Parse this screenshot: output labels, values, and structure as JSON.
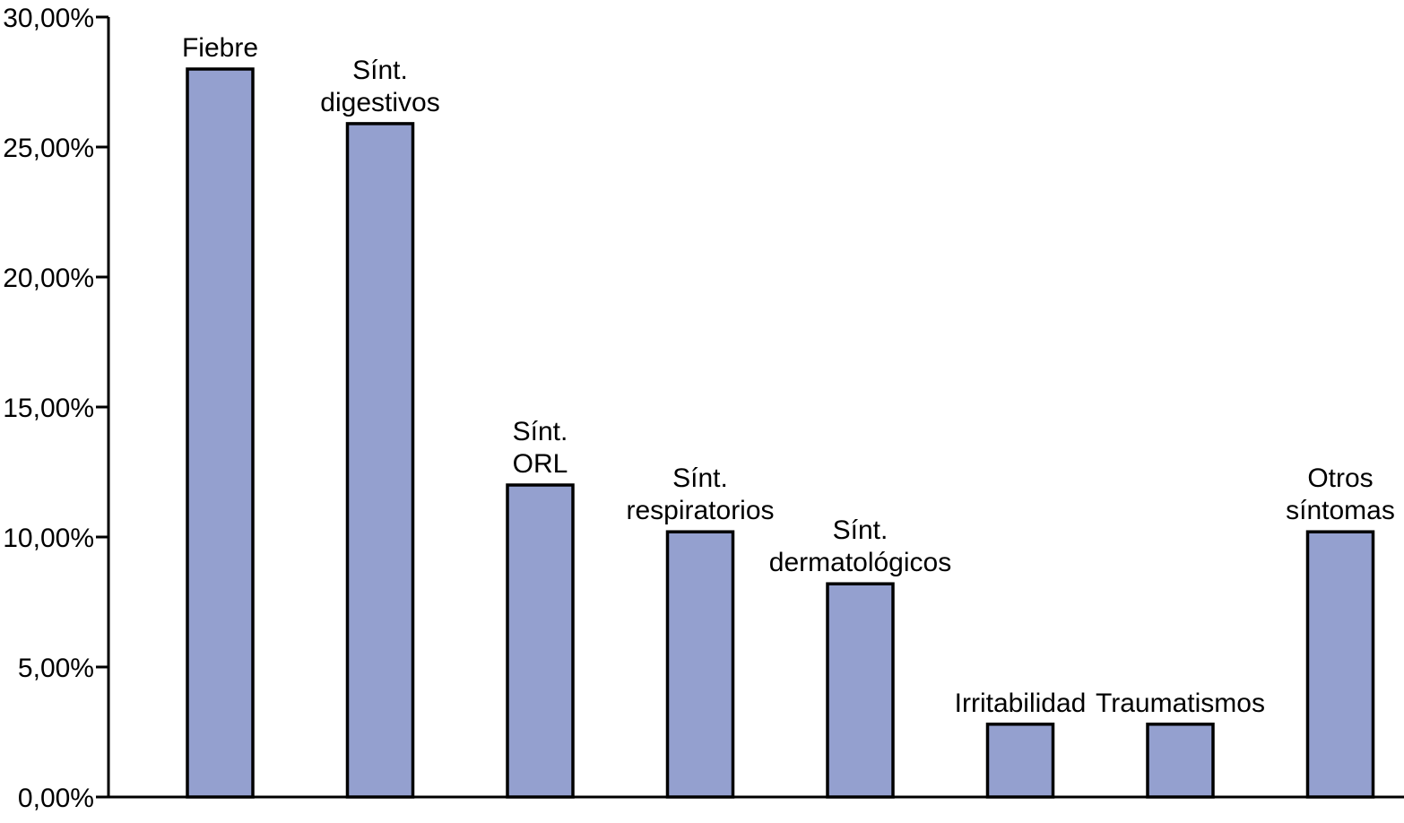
{
  "chart_data": {
    "type": "bar",
    "title": "",
    "xlabel": "",
    "ylabel": "",
    "ylim": [
      0,
      30
    ],
    "yticks": [
      0,
      5,
      10,
      15,
      20,
      25,
      30
    ],
    "ytick_labels": [
      "0,00%",
      "5,00%",
      "10,00%",
      "15,00%",
      "20,00%",
      "25,00%",
      "30,00%"
    ],
    "grid": false,
    "bar_color": "#94a0cf",
    "categories": [
      [
        "Fiebre"
      ],
      [
        "Sínt.",
        "digestivos"
      ],
      [
        "Sínt.",
        "ORL"
      ],
      [
        "Sínt.",
        "respiratorios"
      ],
      [
        "Sínt.",
        "dermatológicos"
      ],
      [
        "Irritabilidad"
      ],
      [
        "Traumatismos"
      ],
      [
        "Otros",
        "síntomas"
      ]
    ],
    "values": [
      28.0,
      25.9,
      12.0,
      10.2,
      8.2,
      2.8,
      2.8,
      10.2
    ]
  }
}
